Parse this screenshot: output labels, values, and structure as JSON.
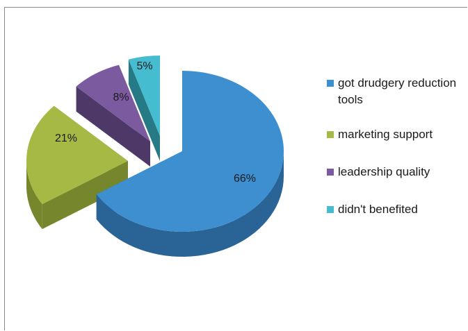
{
  "chart_data": {
    "type": "pie",
    "title": "",
    "legend_position": "right",
    "slices": [
      {
        "label": "got drudgery reduction tools",
        "value": 66,
        "data_label": "66%",
        "color": "#3d8fd0",
        "side_color": "#2a6497"
      },
      {
        "label": "marketing support",
        "value": 21,
        "data_label": "21%",
        "color": "#a5b944",
        "side_color": "#76862c"
      },
      {
        "label": "leadership quality",
        "value": 8,
        "data_label": "8%",
        "color": "#7c5aa0",
        "side_color": "#4e3868"
      },
      {
        "label": "didn't benefited",
        "value": 5,
        "data_label": "5%",
        "color": "#45bccf",
        "side_color": "#267a86"
      }
    ]
  }
}
